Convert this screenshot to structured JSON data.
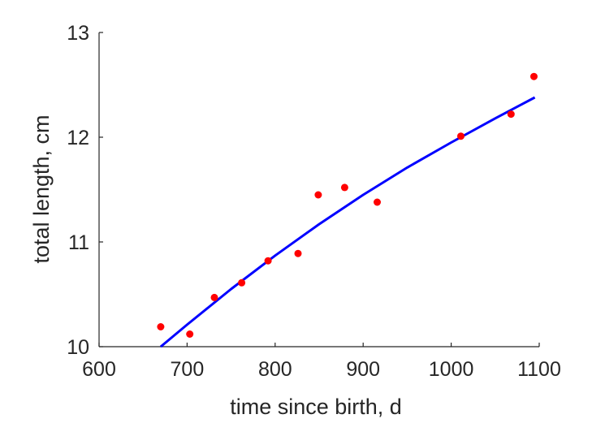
{
  "chart_data": {
    "type": "scatter",
    "xlabel": "time since birth, d",
    "ylabel": "total length, cm",
    "xlim": [
      600,
      1100
    ],
    "ylim": [
      10,
      13
    ],
    "xticks": [
      "600",
      "700",
      "800",
      "900",
      "1000",
      "1100"
    ],
    "yticks": [
      "10",
      "11",
      "12",
      "13"
    ],
    "grid": false,
    "box": false,
    "colors": {
      "points": "#ff0000",
      "fit": "#0000ff",
      "axes": "#262626"
    },
    "series": [
      {
        "type": "scatter",
        "x": [
          670,
          703,
          731,
          762,
          792,
          826,
          849,
          879,
          916,
          1011,
          1068,
          1094
        ],
        "y": [
          10.19,
          10.12,
          10.47,
          10.61,
          10.82,
          10.89,
          11.45,
          11.52,
          11.38,
          12.01,
          12.22,
          12.58
        ]
      },
      {
        "type": "line",
        "x": [
          670,
          700,
          750,
          800,
          850,
          900,
          950,
          1000,
          1050,
          1095
        ],
        "y": [
          10.0,
          10.21,
          10.55,
          10.87,
          11.17,
          11.45,
          11.71,
          11.95,
          12.18,
          12.38
        ]
      }
    ]
  }
}
